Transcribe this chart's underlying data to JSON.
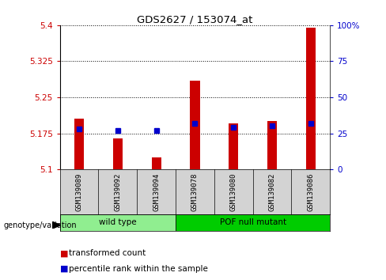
{
  "title": "GDS2627 / 153074_at",
  "samples": [
    "GSM139089",
    "GSM139092",
    "GSM139094",
    "GSM139078",
    "GSM139080",
    "GSM139082",
    "GSM139086"
  ],
  "groups": [
    "wild type",
    "wild type",
    "wild type",
    "POF null mutant",
    "POF null mutant",
    "POF null mutant",
    "POF null mutant"
  ],
  "transformed_counts": [
    5.205,
    5.165,
    5.125,
    5.285,
    5.195,
    5.2,
    5.395
  ],
  "percentile_ranks": [
    28,
    27,
    27,
    32,
    29,
    30,
    32
  ],
  "ylim_left": [
    5.1,
    5.4
  ],
  "yticks_left": [
    5.1,
    5.175,
    5.25,
    5.325,
    5.4
  ],
  "ylim_right": [
    0,
    100
  ],
  "yticks_right": [
    0,
    25,
    50,
    75,
    100
  ],
  "yticklabels_right": [
    "0",
    "25",
    "50",
    "75",
    "100%"
  ],
  "bar_color": "#cc0000",
  "dot_color": "#0000cc",
  "bar_bottom": 5.1,
  "wt_color": "#90ee90",
  "pof_color": "#00cc00",
  "group_label": "genotype/variation",
  "legend_items": [
    "transformed count",
    "percentile rank within the sample"
  ],
  "legend_colors": [
    "#cc0000",
    "#0000cc"
  ],
  "tick_label_color_left": "#cc0000",
  "tick_label_color_right": "#0000cc",
  "wt_count": 3,
  "pof_count": 4
}
